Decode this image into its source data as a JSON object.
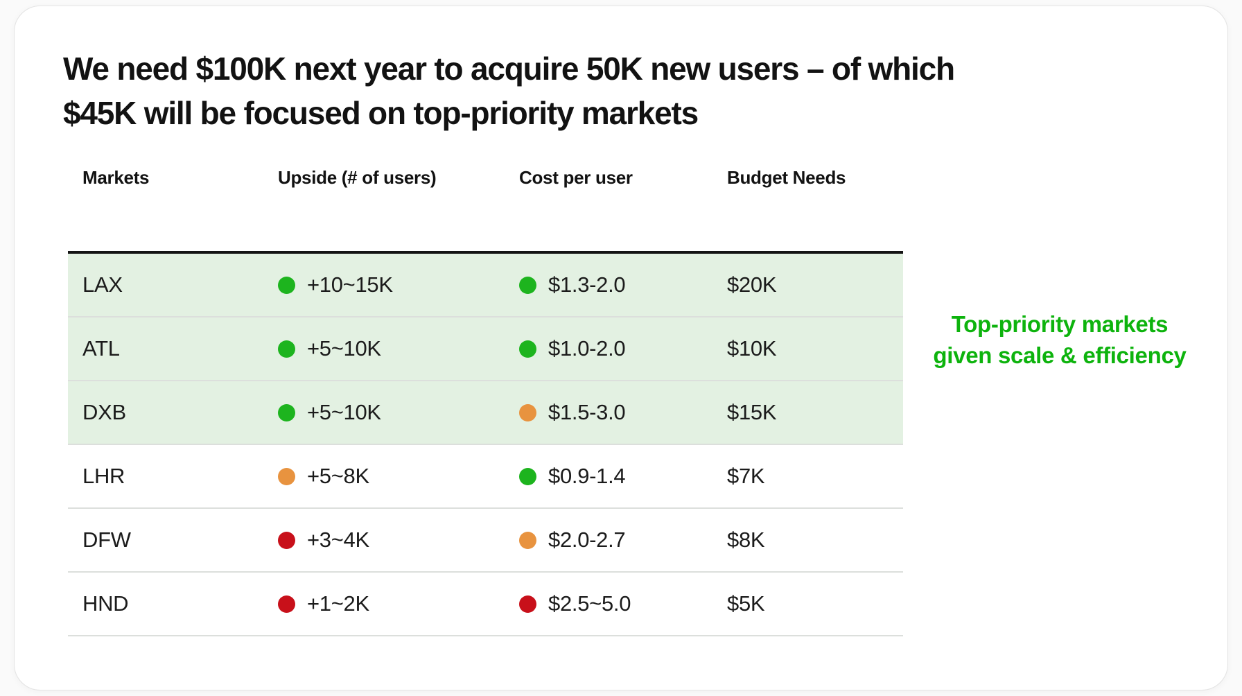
{
  "title": {
    "line1": "We need $100K next year to acquire 50K new users – of which",
    "line2": "$45K will be focused on top-priority markets"
  },
  "table": {
    "columns": [
      "Markets",
      "Upside (# of users)",
      "Cost per user",
      "Budget Needs"
    ],
    "rows": [
      {
        "market": "LAX",
        "upside": "+10~15K",
        "upside_status": "green",
        "cost": "$1.3-2.0",
        "cost_status": "green",
        "budget": "$20K",
        "highlighted": true
      },
      {
        "market": "ATL",
        "upside": "+5~10K",
        "upside_status": "green",
        "cost": "$1.0-2.0",
        "cost_status": "green",
        "budget": "$10K",
        "highlighted": true
      },
      {
        "market": "DXB",
        "upside": "+5~10K",
        "upside_status": "green",
        "cost": "$1.5-3.0",
        "cost_status": "orange",
        "budget": "$15K",
        "highlighted": true
      },
      {
        "market": "LHR",
        "upside": "+5~8K",
        "upside_status": "orange",
        "cost": "$0.9-1.4",
        "cost_status": "green",
        "budget": "$7K",
        "highlighted": false
      },
      {
        "market": "DFW",
        "upside": "+3~4K",
        "upside_status": "red",
        "cost": "$2.0-2.7",
        "cost_status": "orange",
        "budget": "$8K",
        "highlighted": false
      },
      {
        "market": "HND",
        "upside": "+1~2K",
        "upside_status": "red",
        "cost": "$2.5~5.0",
        "cost_status": "red",
        "budget": "$5K",
        "highlighted": false
      }
    ]
  },
  "annotation": {
    "line1": "Top-priority markets",
    "line2": "given scale & efficiency"
  },
  "colors": {
    "status_green": "#1db41e",
    "status_orange": "#e8933f",
    "status_red": "#c8101a",
    "highlight_bg": "#e3f1e2",
    "annotation_green": "#0db30d"
  }
}
